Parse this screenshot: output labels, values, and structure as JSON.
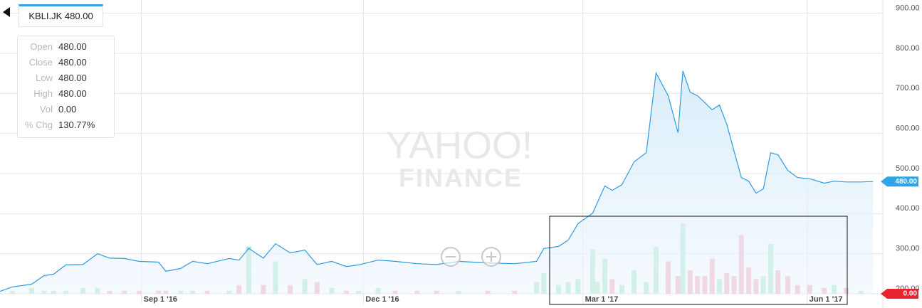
{
  "chart_data": {
    "type": "line",
    "header": {
      "symbol": "KBLI.JK",
      "price": "480.00"
    },
    "tooltip": [
      {
        "label": "Open",
        "value": "480.00"
      },
      {
        "label": "Close",
        "value": "480.00"
      },
      {
        "label": "Low",
        "value": "480.00"
      },
      {
        "label": "High",
        "value": "480.00"
      },
      {
        "label": "Vol",
        "value": "0.00"
      },
      {
        "label": "% Chg",
        "value": "130.77%"
      }
    ],
    "watermark": [
      "YAHOO!",
      "FINANCE"
    ],
    "x": [
      "2016-07-05",
      "2016-07-10",
      "2016-07-18",
      "2016-07-23",
      "2016-07-27",
      "2016-08-01",
      "2016-08-08",
      "2016-08-14",
      "2016-08-19",
      "2016-08-25",
      "2016-08-31",
      "2016-09-08",
      "2016-09-11",
      "2016-09-17",
      "2016-09-22",
      "2016-09-28",
      "2016-10-07",
      "2016-10-11",
      "2016-10-15",
      "2016-10-21",
      "2016-10-26",
      "2016-11-01",
      "2016-11-07",
      "2016-11-12",
      "2016-11-18",
      "2016-11-24",
      "2016-11-29",
      "2016-12-07",
      "2016-12-14",
      "2016-12-23",
      "2016-12-31",
      "2017-01-09",
      "2017-01-21",
      "2017-02-01",
      "2017-02-10",
      "2017-02-13",
      "2017-02-19",
      "2017-02-23",
      "2017-02-27",
      "2017-03-05",
      "2017-03-07",
      "2017-03-10",
      "2017-03-13",
      "2017-03-17",
      "2017-03-22",
      "2017-03-27",
      "2017-03-31",
      "2017-04-05",
      "2017-04-09",
      "2017-04-11",
      "2017-04-14",
      "2017-04-17",
      "2017-04-20",
      "2017-04-23",
      "2017-04-26",
      "2017-04-29",
      "2017-05-02",
      "2017-05-05",
      "2017-05-08",
      "2017-05-11",
      "2017-05-14",
      "2017-05-17",
      "2017-05-20",
      "2017-05-24",
      "2017-05-28",
      "2017-06-02",
      "2017-06-08",
      "2017-06-12",
      "2017-06-17",
      "2017-06-23",
      "2017-06-28"
    ],
    "values": [
      206,
      217,
      224,
      245,
      249,
      272,
      273,
      300,
      289,
      288,
      281,
      279,
      256,
      263,
      281,
      275,
      288,
      284,
      313,
      289,
      325,
      302,
      309,
      273,
      281,
      268,
      272,
      284,
      281,
      275,
      273,
      281,
      277,
      275,
      281,
      313,
      318,
      334,
      375,
      401,
      428,
      469,
      458,
      472,
      529,
      552,
      751,
      694,
      602,
      756,
      703,
      694,
      677,
      659,
      671,
      623,
      556,
      490,
      481,
      451,
      462,
      552,
      547,
      508,
      490,
      487,
      476,
      481,
      479,
      479,
      480
    ],
    "color": "#2d9be0",
    "volume": {
      "axis": "y2",
      "values": [
        0,
        1,
        2,
        1,
        1,
        1,
        2,
        2,
        1,
        1,
        1,
        1,
        1,
        1,
        1,
        1,
        1,
        3,
        16,
        3,
        11,
        3,
        5,
        4,
        2,
        1,
        1,
        2,
        1,
        1,
        1,
        1,
        1,
        1,
        4,
        7,
        3,
        4,
        5,
        15,
        4,
        12,
        5,
        3,
        8,
        4,
        16,
        11,
        6,
        24,
        8,
        6,
        6,
        12,
        5,
        7,
        6,
        20,
        9,
        5,
        6,
        17,
        8,
        6,
        3,
        3,
        2,
        3,
        2,
        1,
        0
      ],
      "up_color": "#a9e8c8",
      "down_color": "#f4a9bb"
    },
    "xlim": [
      "2016-07-05",
      "2017-07-02"
    ],
    "xticks": [
      {
        "value": "2016-09-01",
        "label": "Sep 1 '16"
      },
      {
        "value": "2016-12-01",
        "label": "Dec 1 '16"
      },
      {
        "value": "2017-03-01",
        "label": "Mar 1 '17"
      },
      {
        "value": "2017-06-01",
        "label": "Jun 1 '17"
      }
    ],
    "ylim": [
      200,
      933
    ],
    "yticks": [
      {
        "value": 200,
        "label": "200.00"
      },
      {
        "value": 300,
        "label": "300.00"
      },
      {
        "value": 400,
        "label": "400.00"
      },
      {
        "value": 500,
        "label": "500.00"
      },
      {
        "value": 600,
        "label": "600.00"
      },
      {
        "value": 700,
        "label": "700.00"
      },
      {
        "value": 800,
        "label": "800.00"
      },
      {
        "value": 900,
        "label": "900.00"
      }
    ],
    "y2lim": [
      0,
      100
    ],
    "grid": true,
    "last_price_tag": {
      "value": 480,
      "label": "480.00",
      "color": "#2fa4e7"
    },
    "last_volume_tag": {
      "value": 0,
      "label": "0.00",
      "color": "#e8252f"
    }
  }
}
